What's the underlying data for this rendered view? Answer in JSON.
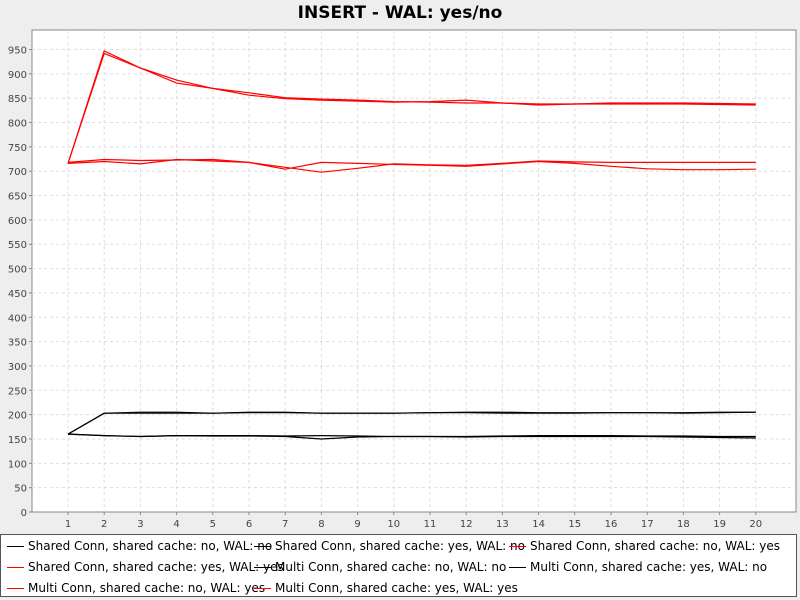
{
  "chart_data": {
    "type": "line",
    "title": "INSERT - WAL: yes/no",
    "xlabel": "",
    "ylabel": "",
    "categories": [
      "1",
      "2",
      "3",
      "4",
      "5",
      "6",
      "7",
      "8",
      "9",
      "10",
      "11",
      "12",
      "13",
      "14",
      "15",
      "16",
      "17",
      "18",
      "19",
      "20"
    ],
    "ylim": [
      0,
      990
    ],
    "yticks": [
      "0",
      "50",
      "100",
      "150",
      "200",
      "250",
      "300",
      "350",
      "400",
      "450",
      "500",
      "550",
      "600",
      "650",
      "700",
      "750",
      "800",
      "850",
      "900",
      "950"
    ],
    "grid": true,
    "legend_position": "bottom",
    "series": [
      {
        "name": "Shared Conn, shared cache: no, WAL: no",
        "color": "#000000",
        "values": [
          160,
          157,
          155,
          157,
          156,
          156,
          155,
          150,
          154,
          155,
          155,
          154,
          155,
          155,
          155,
          155,
          155,
          154,
          153,
          152
        ]
      },
      {
        "name": "Shared Conn, shared cache: yes, WAL: no",
        "color": "#000000",
        "values": [
          160,
          203,
          205,
          205,
          203,
          205,
          205,
          203,
          203,
          203,
          204,
          205,
          205,
          204,
          204,
          204,
          204,
          204,
          205,
          205
        ]
      },
      {
        "name": "Shared Conn, shared cache: no, WAL: yes",
        "color": "#ff0000",
        "values": [
          716,
          947,
          912,
          881,
          870,
          856,
          849,
          846,
          844,
          842,
          843,
          846,
          840,
          838,
          838,
          838,
          838,
          838,
          837,
          836
        ]
      },
      {
        "name": "Shared Conn, shared cache: yes, WAL: yes",
        "color": "#ff0000",
        "values": [
          718,
          724,
          722,
          723,
          724,
          718,
          708,
          698,
          706,
          715,
          713,
          712,
          716,
          721,
          719,
          718,
          718,
          718,
          718,
          718
        ]
      },
      {
        "name": "Multi Conn, shared cache: no, WAL: no",
        "color": "#000000",
        "values": [
          160,
          203,
          203,
          203,
          203,
          204,
          204,
          203,
          203,
          203,
          204,
          204,
          203,
          203,
          203,
          204,
          204,
          203,
          204,
          205
        ]
      },
      {
        "name": "Multi Conn, shared cache: yes, WAL: no",
        "color": "#000000",
        "values": [
          160,
          157,
          155,
          157,
          157,
          157,
          156,
          157,
          156,
          155,
          155,
          155,
          156,
          157,
          157,
          157,
          156,
          156,
          155,
          155
        ]
      },
      {
        "name": "Multi Conn, shared cache: no, WAL: yes",
        "color": "#ff0000",
        "values": [
          716,
          720,
          715,
          724,
          721,
          718,
          704,
          718,
          716,
          714,
          712,
          710,
          715,
          720,
          716,
          710,
          705,
          703,
          703,
          704
        ]
      },
      {
        "name": "Multi Conn, shared cache: yes, WAL: yes",
        "color": "#ff0000",
        "values": [
          716,
          942,
          912,
          887,
          870,
          861,
          851,
          848,
          846,
          843,
          842,
          840,
          840,
          836,
          838,
          840,
          840,
          840,
          839,
          838
        ]
      }
    ]
  }
}
